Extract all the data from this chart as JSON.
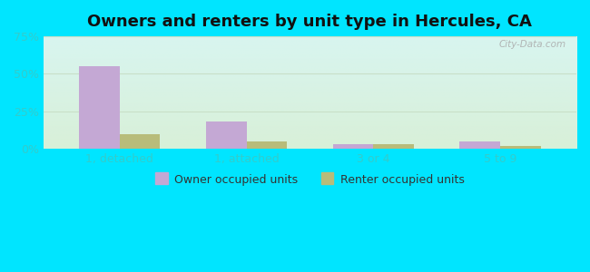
{
  "title": "Owners and renters by unit type in Hercules, CA",
  "categories": [
    "1, detached",
    "1, attached",
    "3 or 4",
    "5 to 9"
  ],
  "owner_values": [
    55,
    18,
    3,
    5
  ],
  "renter_values": [
    10,
    5,
    3,
    2
  ],
  "owner_color": "#c4a8d4",
  "renter_color": "#b8bc7a",
  "ylim": [
    0,
    75
  ],
  "yticks": [
    0,
    25,
    50,
    75
  ],
  "ytick_labels": [
    "0%",
    "25%",
    "50%",
    "75%"
  ],
  "bar_width": 0.32,
  "outer_bg": "#00e5ff",
  "watermark": "City-Data.com",
  "legend_owner": "Owner occupied units",
  "legend_renter": "Renter occupied units",
  "title_fontsize": 13,
  "axis_fontsize": 9,
  "legend_fontsize": 9,
  "tick_color": "#33cccc",
  "grid_color": "#d0e8d0"
}
